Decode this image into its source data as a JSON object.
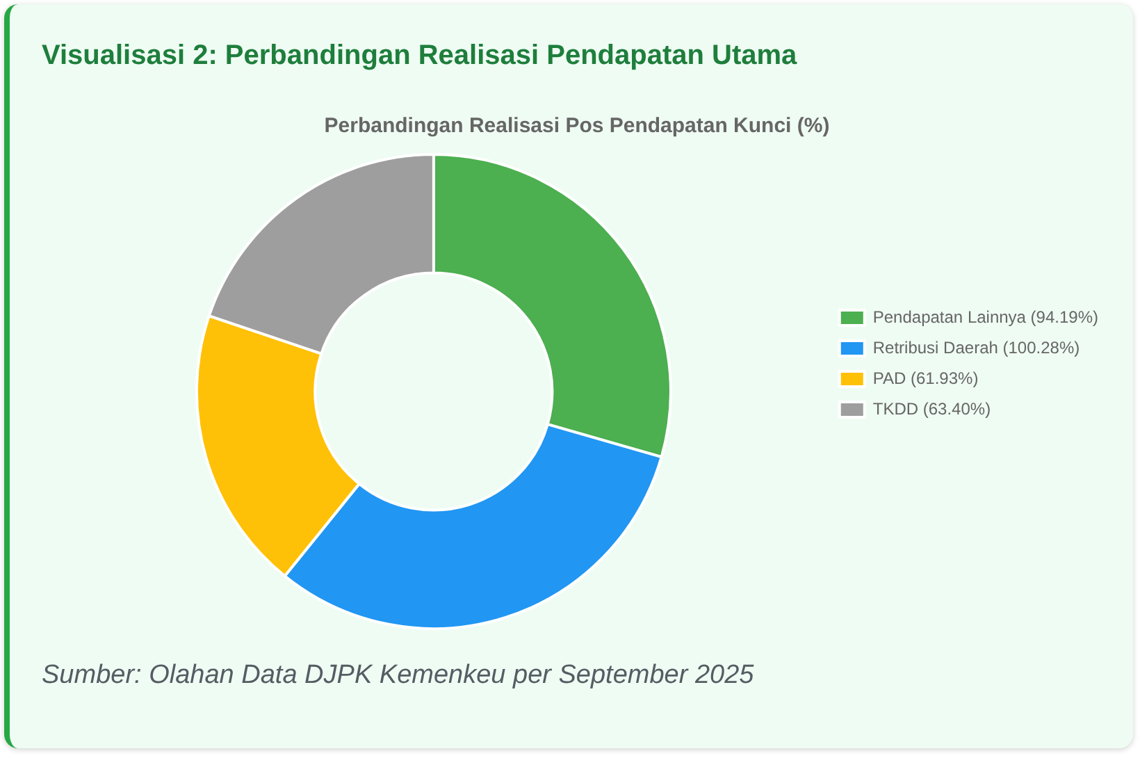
{
  "chart_data": {
    "type": "donut",
    "title": "Visualisasi 2: Perbandingan Realisasi Pendapatan Utama",
    "subtitle": "Perbandingan Realisasi Pos Pendapatan Kunci (%)",
    "categories": [
      "Pendapatan Lainnya (94.19%)",
      "Retribusi Daerah (100.28%)",
      "PAD (61.93%)",
      "TKDD (63.40%)"
    ],
    "values": [
      94.19,
      100.28,
      61.93,
      63.4
    ],
    "colors": [
      "#4caf50",
      "#2196f3",
      "#ffc107",
      "#9e9e9e"
    ],
    "legend": "right",
    "annotations": [
      "Sumber: Olahan Data DJPK Kemenkeu per September 2025"
    ]
  }
}
